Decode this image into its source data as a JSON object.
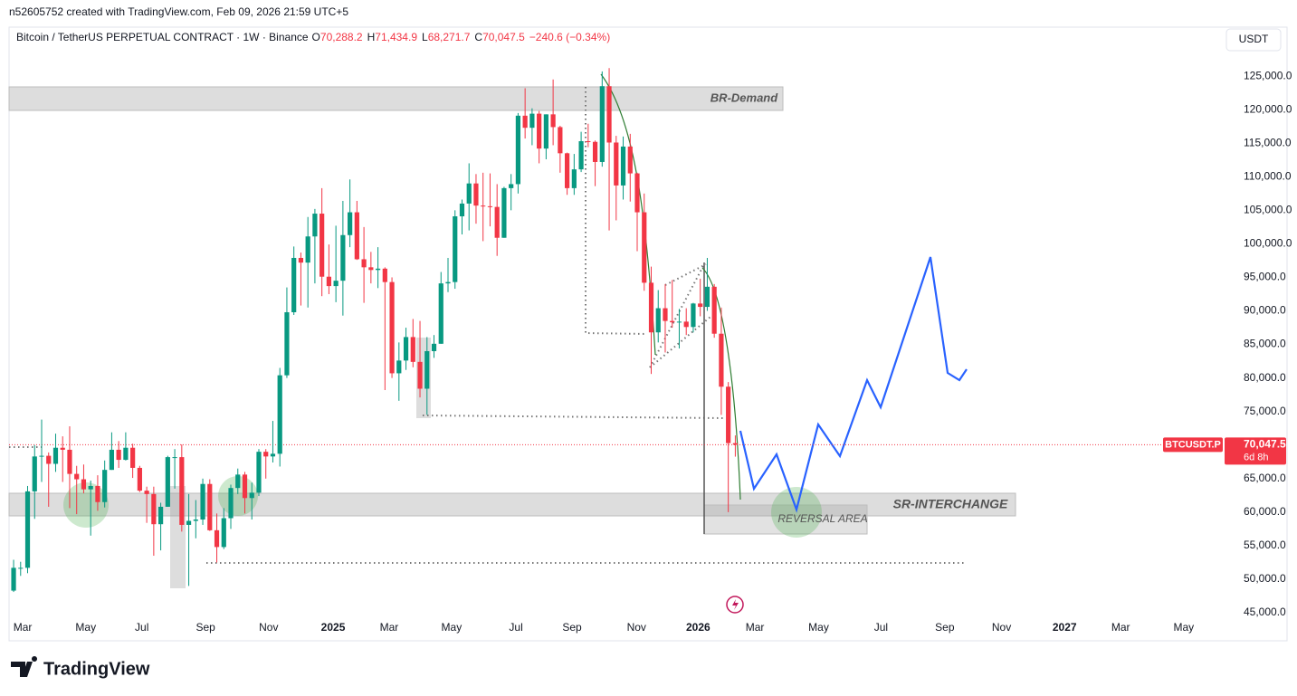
{
  "header": {
    "credit": "n52605752 created with TradingView.com, Feb 09, 2026 21:59 UTC+5",
    "brand": "TradingView"
  },
  "chart_data": {
    "type": "candlestick",
    "symbol": "Bitcoin / TetherUS PERPETUAL CONTRACT · 1W · Binance",
    "legend": [
      {
        "key": "O",
        "text": "70,288.2"
      },
      {
        "key": "H",
        "text": "71,434.9"
      },
      {
        "key": "L",
        "text": "68,271.7"
      },
      {
        "key": "C",
        "text": "70,047.5"
      }
    ],
    "change": "−240.6 (−0.34%)",
    "currency": "USDT",
    "symbol_tag": "BTCUSDT.P",
    "last_price": {
      "value": 70047.5,
      "label": "70,047.5"
    },
    "countdown": "6d 8h",
    "annotations": [
      "BR-Demand",
      "SR-INTERCHANGE",
      "REVERSAL AREA"
    ],
    "up_color": "#089981",
    "down_color": "#f23645",
    "categories": [
      null,
      null,
      null,
      null,
      null,
      null,
      null,
      null,
      null,
      null,
      null,
      null,
      null,
      null,
      null,
      null,
      null,
      null,
      null,
      null,
      null,
      null,
      null,
      null,
      null,
      null,
      null,
      null,
      null,
      null,
      null,
      null,
      null,
      null,
      null,
      null,
      null,
      null,
      null,
      null,
      null,
      null,
      null,
      null,
      null,
      null,
      null,
      null,
      null,
      null,
      null,
      null,
      null,
      null,
      null,
      null,
      null,
      null,
      null,
      null,
      null,
      null,
      null,
      null,
      null,
      null,
      null,
      null,
      null,
      null,
      null,
      null,
      null,
      null,
      null,
      null,
      null,
      null,
      null,
      null,
      null,
      null,
      null,
      null,
      null,
      null,
      null,
      null,
      null,
      null,
      null,
      null,
      null,
      null,
      null,
      null,
      null,
      null,
      null,
      null,
      null,
      null,
      null,
      null
    ],
    "open": [
      48300,
      51700,
      51700,
      63100,
      68300,
      68400,
      67200,
      69600,
      69300,
      65700,
      64900,
      63400,
      63900,
      61500,
      66300,
      69300,
      67800,
      69600,
      66600,
      63200,
      62700,
      58200,
      60800,
      68200,
      68200,
      58100,
      58700,
      58900,
      64200,
      57300,
      54800,
      59100,
      63600,
      65600,
      62100,
      62900,
      69000,
      68300,
      68700,
      80400,
      89800,
      97900,
      97200,
      101100,
      104500,
      95100,
      93700,
      94500,
      101300,
      104700,
      97700,
      96500,
      96100,
      96300,
      94300,
      80700,
      82600,
      86100,
      82400,
      78400,
      84000,
      85100,
      94100,
      94300,
      104100,
      106000,
      109000,
      105700,
      105600,
      105500,
      100900,
      108300,
      108900,
      119100,
      117300,
      119400,
      114200,
      119300,
      117400,
      113500,
      108300,
      111100,
      115300,
      115200,
      112200,
      123500,
      115100,
      108700,
      114500,
      110500,
      104700,
      94200,
      86800,
      90400,
      88500,
      88300,
      88400,
      87600,
      91100,
      90600,
      93600,
      86600,
      78700,
      70288.2
    ],
    "high": [
      52900,
      52600,
      63900,
      70000,
      73800,
      68900,
      71700,
      71300,
      72800,
      66900,
      67100,
      64700,
      65500,
      67700,
      71900,
      70600,
      71900,
      70200,
      66900,
      63800,
      63800,
      61400,
      68400,
      69400,
      70100,
      62700,
      61800,
      65000,
      64900,
      59800,
      60600,
      64100,
      66500,
      66000,
      64400,
      69400,
      69400,
      73600,
      81500,
      93500,
      99600,
      98700,
      104000,
      105200,
      108300,
      99900,
      102700,
      106400,
      109600,
      106400,
      102500,
      98800,
      99500,
      96500,
      95000,
      85300,
      87500,
      88800,
      88500,
      86100,
      86400,
      95800,
      97900,
      105000,
      106600,
      112000,
      110400,
      110600,
      110500,
      108900,
      108500,
      110400,
      119500,
      123200,
      120200,
      119800,
      119300,
      124500,
      117600,
      113600,
      113400,
      116700,
      117900,
      115400,
      125700,
      126200,
      116100,
      116000,
      116400,
      110600,
      107500,
      96600,
      93100,
      94000,
      94600,
      90300,
      90400,
      91200,
      94800,
      97900,
      94000,
      90500,
      79400,
      71434.9
    ],
    "low": [
      48100,
      50500,
      50900,
      59000,
      64500,
      60800,
      66000,
      64500,
      60600,
      59700,
      62800,
      56500,
      60200,
      60700,
      66300,
      66600,
      67700,
      65100,
      63000,
      58400,
      53500,
      54300,
      60800,
      63500,
      57100,
      49000,
      56100,
      58100,
      57200,
      52500,
      54500,
      57500,
      62700,
      59800,
      58900,
      62400,
      65000,
      67400,
      66800,
      80000,
      89400,
      90800,
      90500,
      94100,
      92200,
      92500,
      91300,
      89300,
      99500,
      97600,
      91200,
      94100,
      93400,
      78200,
      80000,
      76600,
      81200,
      81600,
      77100,
      74500,
      83000,
      85100,
      92800,
      93300,
      101400,
      102000,
      103000,
      100400,
      102600,
      98200,
      100900,
      105000,
      107500,
      115700,
      114700,
      112000,
      112600,
      114700,
      110600,
      107300,
      107300,
      110700,
      114400,
      108600,
      111500,
      102000,
      103500,
      106600,
      106300,
      98900,
      93000,
      80600,
      85300,
      83800,
      87500,
      84400,
      86400,
      86800,
      89200,
      90000,
      86000,
      74500,
      60000,
      68271.7
    ],
    "close": [
      51700,
      51700,
      63100,
      68300,
      68400,
      67200,
      69600,
      69300,
      65700,
      64900,
      63400,
      63900,
      61500,
      66300,
      69300,
      67800,
      69600,
      66600,
      63200,
      62700,
      58200,
      60800,
      68200,
      68200,
      58100,
      58700,
      58900,
      64200,
      57300,
      54800,
      59100,
      63600,
      65600,
      62100,
      62900,
      69000,
      68300,
      68700,
      80400,
      89800,
      97900,
      97200,
      101100,
      104500,
      95100,
      93700,
      94500,
      101300,
      104700,
      97700,
      96500,
      96100,
      96300,
      94300,
      80700,
      82600,
      86100,
      82400,
      78400,
      84000,
      85100,
      94100,
      94300,
      104100,
      106000,
      109000,
      105700,
      105600,
      105500,
      100900,
      108300,
      108900,
      119100,
      117300,
      119400,
      114200,
      119300,
      117400,
      113500,
      108300,
      111100,
      115300,
      115200,
      112200,
      123500,
      115100,
      108700,
      114500,
      110500,
      104700,
      94200,
      86800,
      90400,
      88500,
      88300,
      88400,
      87600,
      91100,
      90600,
      93600,
      86600,
      78700,
      70288.2,
      70047.5
    ],
    "xlim": [
      -0.65,
      171.8
    ],
    "xticks": [
      {
        "value": 1.3,
        "label": "Mar"
      },
      {
        "value": 10.3,
        "label": "May"
      },
      {
        "value": 18.3,
        "label": "Jul"
      },
      {
        "value": 27.4,
        "label": "Sep"
      },
      {
        "value": 36.4,
        "label": "Nov"
      },
      {
        "value": 45.6,
        "label": "2025"
      },
      {
        "value": 53.6,
        "label": "Mar"
      },
      {
        "value": 62.5,
        "label": "May"
      },
      {
        "value": 71.7,
        "label": "Jul"
      },
      {
        "value": 79.7,
        "label": "Sep"
      },
      {
        "value": 88.9,
        "label": "Nov"
      },
      {
        "value": 97.7,
        "label": "2026"
      },
      {
        "value": 105.8,
        "label": "Mar"
      },
      {
        "value": 114.9,
        "label": "May"
      },
      {
        "value": 123.8,
        "label": "Jul"
      },
      {
        "value": 132.9,
        "label": "Sep"
      },
      {
        "value": 141,
        "label": "Nov"
      },
      {
        "value": 150,
        "label": "2027"
      },
      {
        "value": 158,
        "label": "Mar"
      },
      {
        "value": 167,
        "label": "May"
      }
    ],
    "ylim": [
      44600,
      132300
    ],
    "yticks": [
      {
        "value": 45000,
        "label": "45,000.0"
      },
      {
        "value": 50000,
        "label": "50,000.0"
      },
      {
        "value": 55000,
        "label": "55,000.0"
      },
      {
        "value": 60000,
        "label": "60,000.0"
      },
      {
        "value": 65000,
        "label": "65,000.0"
      },
      {
        "value": 70000,
        "label": "70,000.0"
      },
      {
        "value": 75000,
        "label": "75,000.0"
      },
      {
        "value": 80000,
        "label": "80,000.0"
      },
      {
        "value": 85000,
        "label": "85,000.0"
      },
      {
        "value": 90000,
        "label": "90,000.0"
      },
      {
        "value": 95000,
        "label": "95,000.0"
      },
      {
        "value": 100000,
        "label": "100,000.0"
      },
      {
        "value": 105000,
        "label": "105,000.0"
      },
      {
        "value": 110000,
        "label": "110,000.0"
      },
      {
        "value": 115000,
        "label": "115,000.0"
      },
      {
        "value": 120000,
        "label": "120,000.0"
      },
      {
        "value": 125000,
        "label": "125,000.0"
      }
    ],
    "grid": false
  }
}
